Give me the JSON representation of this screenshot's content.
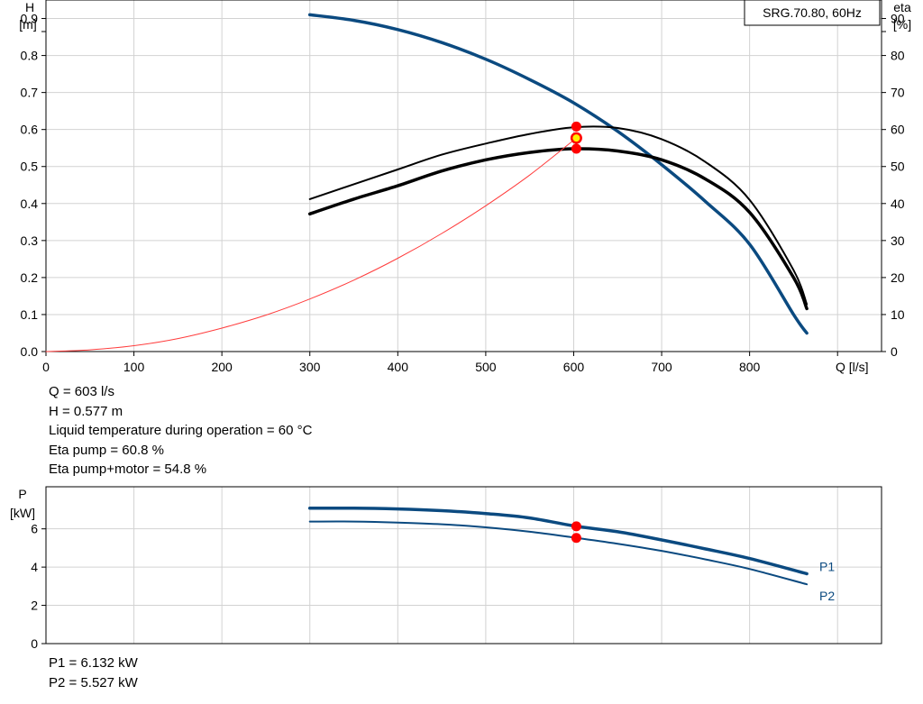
{
  "chart_data": [
    {
      "type": "line",
      "title": "SRG.70.80, 60Hz",
      "xlabel": "Q [l/s]",
      "ylabel": "H",
      "ylabel_unit": "[m]",
      "y2label": "eta",
      "y2label_unit": "[%]",
      "xlim": [
        0,
        950
      ],
      "ylim": [
        0,
        0.95
      ],
      "y2lim": [
        0,
        95
      ],
      "x_ticks": [
        0,
        100,
        200,
        300,
        400,
        500,
        600,
        700,
        800
      ],
      "y_ticks": [
        "0.0",
        "0.1",
        "0.2",
        "0.3",
        "0.4",
        "0.5",
        "0.6",
        "0.7",
        "0.8",
        "0.9"
      ],
      "y2_ticks": [
        "0",
        "10",
        "20",
        "30",
        "40",
        "50",
        "60",
        "70",
        "80",
        "90"
      ],
      "grid": true,
      "series": [
        {
          "axis": "left",
          "color": "#0b4a80",
          "points": [
            [
              300,
              0.91
            ],
            [
              350,
              0.895
            ],
            [
              400,
              0.87
            ],
            [
              450,
              0.835
            ],
            [
              500,
              0.79
            ],
            [
              550,
              0.735
            ],
            [
              600,
              0.672
            ],
            [
              650,
              0.595
            ],
            [
              700,
              0.505
            ],
            [
              750,
              0.405
            ],
            [
              800,
              0.29
            ],
            [
              850,
              0.1
            ],
            [
              865,
              0.05
            ]
          ]
        },
        {
          "axis": "right",
          "color": "#000000",
          "points": [
            [
              300,
              41.2
            ],
            [
              350,
              45.2
            ],
            [
              400,
              49.2
            ],
            [
              450,
              53.2
            ],
            [
              500,
              56.2
            ],
            [
              550,
              58.8
            ],
            [
              600,
              60.6
            ],
            [
              650,
              60.4
            ],
            [
              700,
              57.4
            ],
            [
              750,
              51.2
            ],
            [
              800,
              41
            ],
            [
              850,
              22
            ],
            [
              865,
              12.8
            ]
          ]
        },
        {
          "axis": "right",
          "color": "#000000",
          "points": [
            [
              300,
              37.2
            ],
            [
              350,
              41.2
            ],
            [
              400,
              44.8
            ],
            [
              450,
              48.8
            ],
            [
              500,
              51.8
            ],
            [
              550,
              53.8
            ],
            [
              600,
              54.8
            ],
            [
              650,
              54.2
            ],
            [
              700,
              51.8
            ],
            [
              750,
              46.6
            ],
            [
              800,
              37.6
            ],
            [
              850,
              20
            ],
            [
              865,
              11.6
            ]
          ]
        },
        {
          "axis": "left",
          "color": "#ff3c3c",
          "points": [
            [
              0,
              0
            ],
            [
              50,
              0.0046
            ],
            [
              100,
              0.0158
            ],
            [
              150,
              0.035
            ],
            [
              200,
              0.0634
            ],
            [
              250,
              0.0985
            ],
            [
              300,
              0.142
            ],
            [
              350,
              0.193
            ],
            [
              400,
              0.252
            ],
            [
              450,
              0.319
            ],
            [
              500,
              0.394
            ],
            [
              550,
              0.477
            ],
            [
              603,
              0.577
            ]
          ]
        }
      ],
      "operating_point": {
        "x": 603,
        "y": 0.577,
        "marker_colors": [
          "#ff0000",
          "#ffee00"
        ],
        "eta_pump": 60.8,
        "eta_pump_motor": 54.8
      }
    },
    {
      "type": "line",
      "xlabel": "",
      "ylabel": "P",
      "ylabel_unit": "[kW]",
      "xlim": [
        0,
        950
      ],
      "ylim": [
        0,
        8.2
      ],
      "y_ticks": [
        "0",
        "2",
        "4",
        "6"
      ],
      "grid": true,
      "series": [
        {
          "name": "P1",
          "color": "#0b4a80",
          "points": [
            [
              300,
              7.08
            ],
            [
              350,
              7.08
            ],
            [
              400,
              7.04
            ],
            [
              450,
              6.95
            ],
            [
              500,
              6.8
            ],
            [
              550,
              6.57
            ],
            [
              603,
              6.132
            ],
            [
              650,
              5.85
            ],
            [
              700,
              5.42
            ],
            [
              750,
              4.95
            ],
            [
              800,
              4.45
            ],
            [
              865,
              3.65
            ]
          ]
        },
        {
          "name": "P2",
          "color": "#0b4a80",
          "points": [
            [
              300,
              6.38
            ],
            [
              350,
              6.38
            ],
            [
              400,
              6.33
            ],
            [
              450,
              6.24
            ],
            [
              500,
              6.08
            ],
            [
              550,
              5.85
            ],
            [
              603,
              5.527
            ],
            [
              650,
              5.22
            ],
            [
              700,
              4.85
            ],
            [
              750,
              4.4
            ],
            [
              800,
              3.9
            ],
            [
              865,
              3.1
            ]
          ]
        }
      ],
      "operating_points": [
        6.132,
        5.527
      ]
    }
  ],
  "info": {
    "q": "Q = 603 l/s",
    "h": "H = 0.577 m",
    "temp": "Liquid temperature during operation = 60 °C",
    "eta_pump": "Eta pump = 60.8 %",
    "eta_total": "Eta pump+motor = 54.8 %"
  },
  "power_info": {
    "p1": "P1 = 6.132 kW",
    "p2": "P2 = 5.527 kW"
  },
  "colors": {
    "curve": "#0b4a80",
    "system": "#ff3c3c",
    "marker": "#ff0000",
    "grid": "#d2d2d2"
  }
}
